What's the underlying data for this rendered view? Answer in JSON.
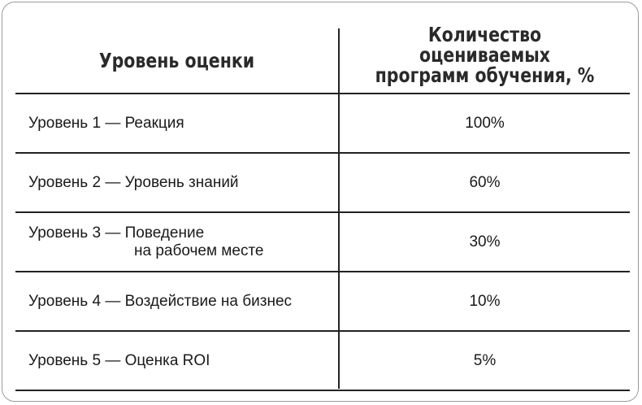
{
  "table": {
    "headers": {
      "level": "Уровень оценки",
      "programs_percent": "Количество оцениваемых\nпрограмм обучения, %"
    },
    "rows": [
      {
        "level": "Уровень 1 — Реакция",
        "level_line2": "",
        "value": "100%"
      },
      {
        "level": "Уровень 2 — Уровень знаний",
        "level_line2": "",
        "value": "60%"
      },
      {
        "level": "Уровень 3 — Поведение",
        "level_line2": "на рабочем месте",
        "value": "30%"
      },
      {
        "level": "Уровень 4 — Воздействие на бизнес",
        "level_line2": "",
        "value": "10%"
      },
      {
        "level": "Уровень 5 — Оценка ROI",
        "level_line2": "",
        "value": "5%"
      }
    ]
  }
}
